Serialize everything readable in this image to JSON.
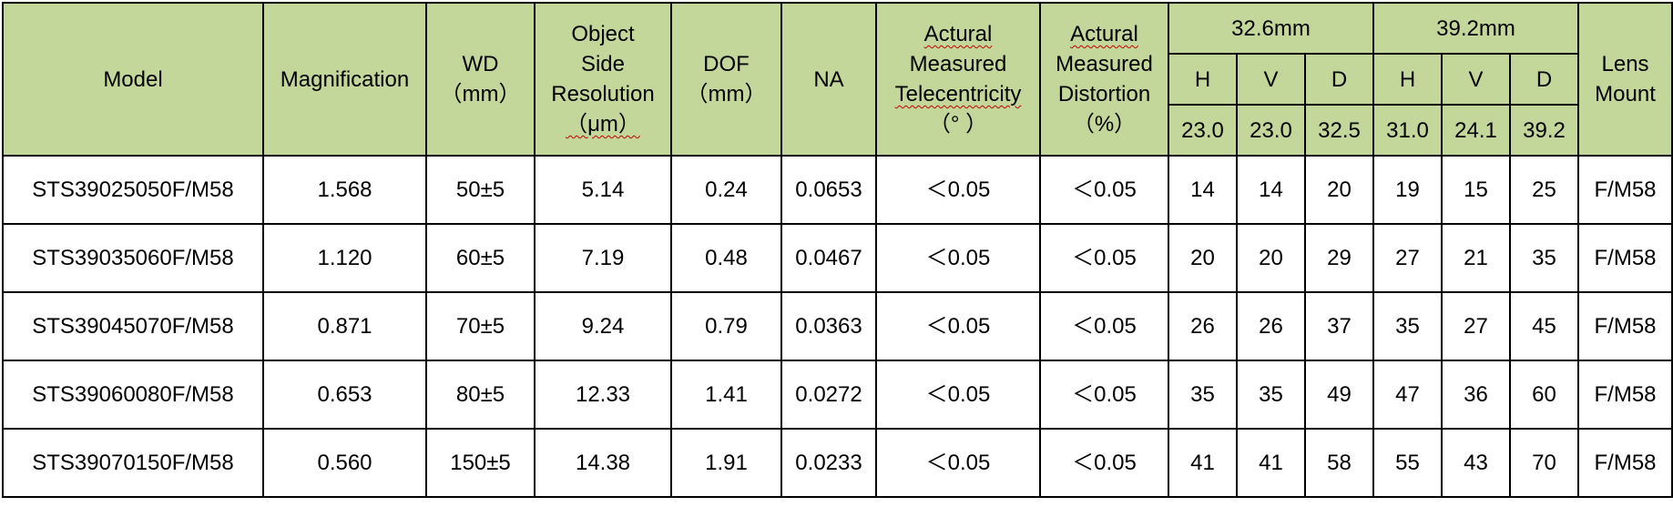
{
  "headers": {
    "model": "Model",
    "magnification": "Magnification",
    "wd": [
      "WD",
      "（mm）"
    ],
    "resolution": [
      "Object",
      "Side",
      "Resolution",
      "（μm）"
    ],
    "dof": [
      "DOF",
      "（mm）"
    ],
    "na": "NA",
    "telecentricity": [
      "Actural",
      "Measured",
      "Telecentricity",
      "（°  ）"
    ],
    "distortion": [
      "Actural",
      "Measured",
      "Distortion",
      "（%）"
    ],
    "sensor_a": "32.6mm",
    "sensor_b": "39.2mm",
    "h": "H",
    "v": "V",
    "d": "D",
    "sensor_a_vals": [
      "23.0",
      "23.0",
      "32.5"
    ],
    "sensor_b_vals": [
      "31.0",
      "24.1",
      "39.2"
    ],
    "mount": [
      "Lens",
      "Mount"
    ]
  },
  "rows": [
    [
      "STS39025050F/M58",
      "1.568",
      "50±5",
      "5.14",
      "0.24",
      "0.0653",
      "＜0.05",
      "＜0.05",
      "14",
      "14",
      "20",
      "19",
      "15",
      "25",
      "F/M58"
    ],
    [
      "STS39035060F/M58",
      "1.120",
      "60±5",
      "7.19",
      "0.48",
      "0.0467",
      "＜0.05",
      "＜0.05",
      "20",
      "20",
      "29",
      "27",
      "21",
      "35",
      "F/M58"
    ],
    [
      "STS39045070F/M58",
      "0.871",
      "70±5",
      "9.24",
      "0.79",
      "0.0363",
      "＜0.05",
      "＜0.05",
      "26",
      "26",
      "37",
      "35",
      "27",
      "45",
      "F/M58"
    ],
    [
      "STS39060080F/M58",
      "0.653",
      "80±5",
      "12.33",
      "1.41",
      "0.0272",
      "＜0.05",
      "＜0.05",
      "35",
      "35",
      "49",
      "47",
      "36",
      "60",
      "F/M58"
    ],
    [
      "STS39070150F/M58",
      "0.560",
      "150±5",
      "14.38",
      "1.91",
      "0.0233",
      "＜0.05",
      "＜0.05",
      "41",
      "41",
      "58",
      "55",
      "43",
      "70",
      "F/M58"
    ]
  ]
}
